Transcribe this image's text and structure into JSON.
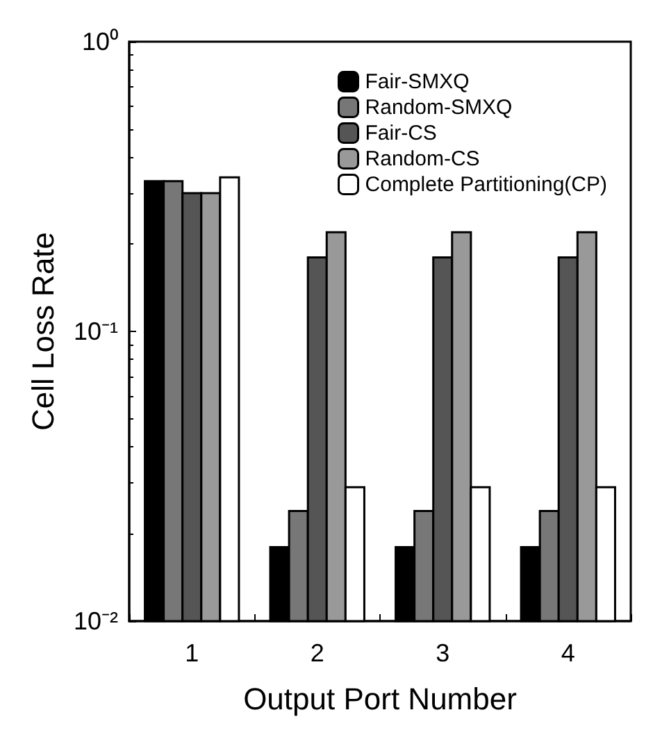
{
  "chart_data": {
    "type": "bar",
    "xlabel": "Output Port Number",
    "ylabel": "Cell Loss Rate",
    "categories": [
      "1",
      "2",
      "3",
      "4"
    ],
    "series": [
      {
        "name": "Fair-SMXQ",
        "color": "#000000",
        "values": [
          0.33,
          0.018,
          0.018,
          0.018
        ]
      },
      {
        "name": "Random-SMXQ",
        "color": "#777777",
        "values": [
          0.33,
          0.024,
          0.024,
          0.024
        ]
      },
      {
        "name": "Fair-CS",
        "color": "#555555",
        "values": [
          0.3,
          0.18,
          0.18,
          0.18
        ]
      },
      {
        "name": "Random-CS",
        "color": "#999999",
        "values": [
          0.3,
          0.22,
          0.22,
          0.22
        ]
      },
      {
        "name": "Complete Partitioning(CP)",
        "color": "#ffffff",
        "values": [
          0.34,
          0.029,
          0.029,
          0.029
        ]
      }
    ],
    "log": "y",
    "ylim": [
      0.01,
      1
    ],
    "yticks": [
      {
        "value": 0.01,
        "label": "10⁻²"
      },
      {
        "value": 0.1,
        "label": "10⁻¹"
      },
      {
        "value": 1,
        "label": "10⁰"
      }
    ],
    "legend": "top right",
    "grid": false
  }
}
